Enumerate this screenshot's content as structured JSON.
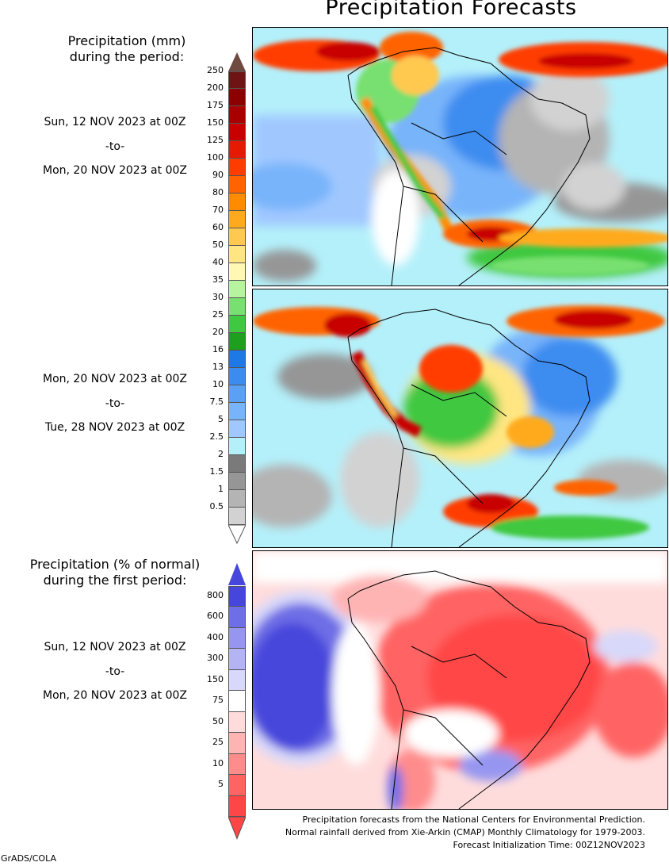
{
  "title": "Precipitation Forecasts",
  "legend_mm": {
    "heading_line1": "Precipitation (mm)",
    "heading_line2": "during the period:",
    "levels": [
      "250",
      "200",
      "175",
      "150",
      "125",
      "100",
      "90",
      "80",
      "70",
      "60",
      "50",
      "40",
      "35",
      "30",
      "25",
      "20",
      "16",
      "13",
      "10",
      "7.5",
      "5",
      "2.5",
      "2",
      "1.5",
      "1",
      "0.5"
    ],
    "colors": [
      "#6e1414",
      "#8c0000",
      "#a80000",
      "#c80000",
      "#e51a00",
      "#ff3c00",
      "#ff6400",
      "#ff8c00",
      "#ffaa1e",
      "#ffc850",
      "#ffe682",
      "#fff8b4",
      "#b8f4a0",
      "#78e070",
      "#40c840",
      "#1ea01e",
      "#1e78e6",
      "#3c8cf0",
      "#5aa0f5",
      "#78b4fa",
      "#a0c8ff",
      "#b4f0fa",
      "#7a7a7a",
      "#969696",
      "#b4b4b4",
      "#d2d2d2"
    ],
    "top_arrow_color": "#6e4a40",
    "bottom_arrow_color": "#ffffff"
  },
  "period1": {
    "from": "Sun, 12 NOV 2023 at 00Z",
    "sep": "-to-",
    "to": "Mon, 20 NOV 2023 at 00Z"
  },
  "period2": {
    "from": "Mon, 20 NOV 2023 at 00Z",
    "sep": "-to-",
    "to": "Tue, 28 NOV 2023 at 00Z"
  },
  "legend_pct": {
    "heading_line1": "Precipitation (% of normal)",
    "heading_line2": "during the first period:",
    "levels": [
      "800",
      "600",
      "400",
      "300",
      "150",
      "75",
      "50",
      "25",
      "10",
      "5"
    ],
    "colors": [
      "#4646dc",
      "#6e6ee6",
      "#9696f0",
      "#b4b4f5",
      "#d8d8fa",
      "#ffffff",
      "#ffdcdc",
      "#ffb4b4",
      "#ff8c8c",
      "#ff6464",
      "#ff4646"
    ],
    "top_arrow_color": "#4646dc",
    "bottom_arrow_color": "#ff4646"
  },
  "period3": {
    "from": "Sun, 12 NOV 2023 at 00Z",
    "sep": "-to-",
    "to": "Mon, 20 NOV 2023 at 00Z"
  },
  "footer": {
    "line1": "Precipitation forecasts from the National Centers for Environmental Prediction.",
    "line2": "Normal rainfall derived from Xie-Arkin (CMAP) Monthly Climatology for 1979-2003.",
    "line3": "Forecast Initialization Time: 00Z12NOV2023"
  },
  "credit": "GrADS/COLA"
}
